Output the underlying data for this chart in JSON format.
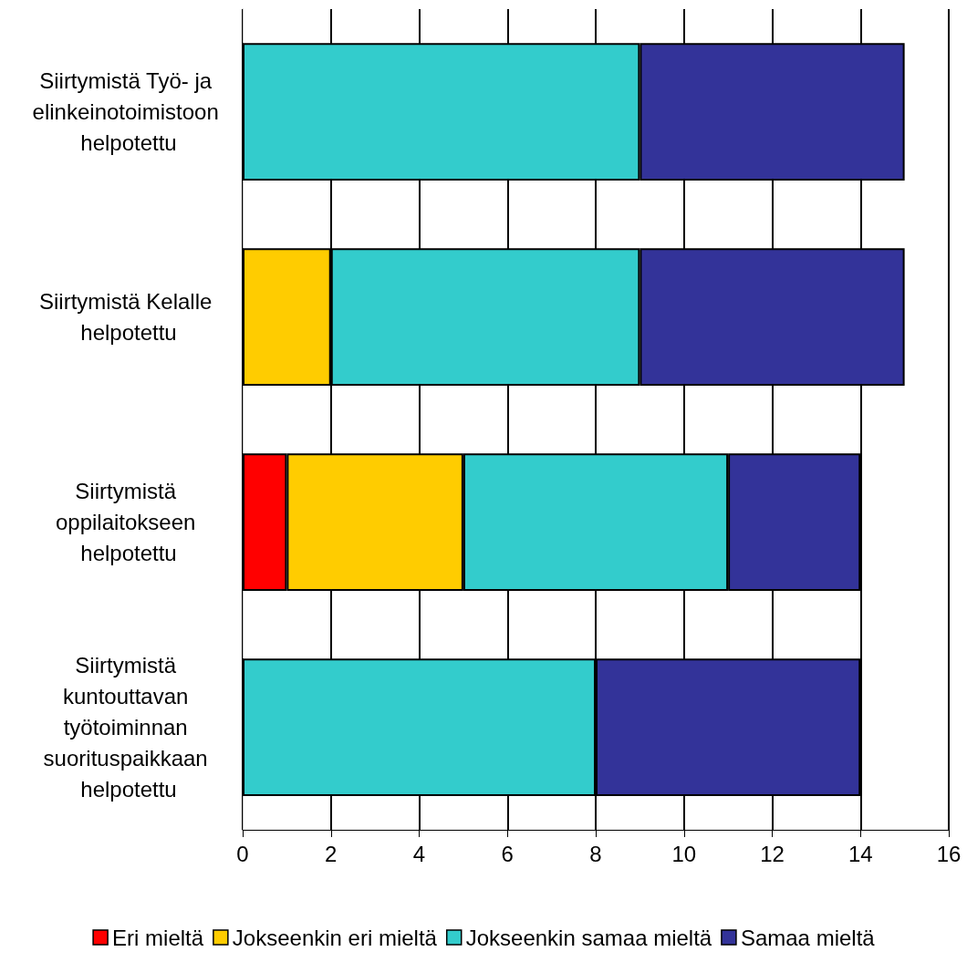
{
  "chart_data": {
    "type": "bar",
    "orientation": "horizontal",
    "stacked": true,
    "categories": [
      "Siirtymistä Työ- ja elinkeinotoimistoon helpotettu",
      "Siirtymistä Kelalle helpotettu",
      "Siirtymistä oppilaitokseen helpotettu",
      "Siirtymistä kuntouttavan työtoiminnan suorituspaikkaan helpotettu"
    ],
    "series": [
      {
        "name": "Eri mieltä",
        "color": "#ff0000",
        "values": [
          0,
          0,
          1,
          0
        ]
      },
      {
        "name": "Jokseenkin eri mieltä",
        "color": "#ffcc00",
        "values": [
          0,
          2,
          4,
          0
        ]
      },
      {
        "name": "Jokseenkin samaa mieltä",
        "color": "#33cccc",
        "values": [
          9,
          7,
          6,
          8
        ]
      },
      {
        "name": "Samaa mieltä",
        "color": "#333399",
        "values": [
          6,
          6,
          3,
          6
        ]
      }
    ],
    "xlim": [
      0,
      16
    ],
    "xticks": [
      0,
      2,
      4,
      6,
      8,
      10,
      12,
      14,
      16
    ],
    "grid": "x",
    "legend": "bottom"
  }
}
